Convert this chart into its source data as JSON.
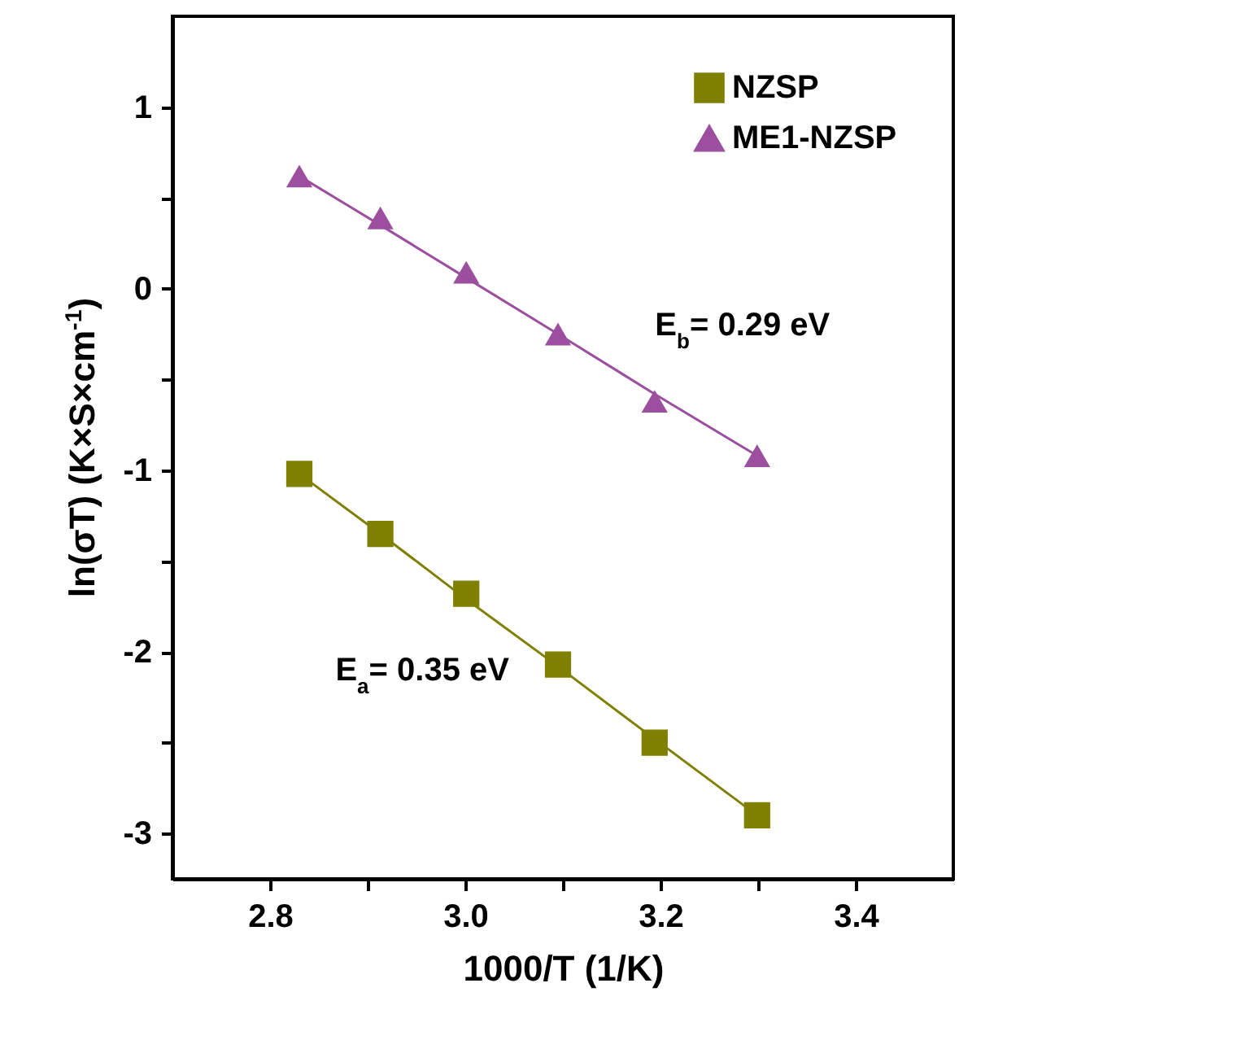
{
  "chart_data": {
    "type": "scatter",
    "xlabel": "1000/T (1/K)",
    "ylabel": "ln(σT) (K×S×cm$^{-1}$)",
    "xlim": [
      2.7,
      3.5
    ],
    "ylim": [
      -3.25,
      1.5
    ],
    "xticks": [
      {
        "value": 2.8,
        "label": "2.8"
      },
      {
        "value": 2.9,
        "label": null
      },
      {
        "value": 3.0,
        "label": "3.0"
      },
      {
        "value": 3.1,
        "label": null
      },
      {
        "value": 3.2,
        "label": "3.2"
      },
      {
        "value": 3.3,
        "label": null
      },
      {
        "value": 3.4,
        "label": "3.4"
      }
    ],
    "yticks": [
      {
        "value": -3,
        "label": "-3"
      },
      {
        "value": -2.5,
        "label": null
      },
      {
        "value": -2,
        "label": "-2"
      },
      {
        "value": -1.5,
        "label": null
      },
      {
        "value": -1,
        "label": "-1"
      },
      {
        "value": -0.5,
        "label": null
      },
      {
        "value": 0,
        "label": "0"
      },
      {
        "value": 0.5,
        "label": null
      },
      {
        "value": 1,
        "label": "1"
      }
    ],
    "grid": false,
    "legend": "top right",
    "x": [
      2.83,
      2.913,
      3.001,
      3.095,
      3.194,
      3.299
    ],
    "series": [
      {
        "name": "NZSP",
        "marker": "square",
        "color": "#808000",
        "values": [
          -1.02,
          -1.35,
          -1.68,
          -2.07,
          -2.5,
          -2.9
        ]
      },
      {
        "name": "ME1-NZSP",
        "marker": "triangle",
        "color": "#9b4f9e",
        "values": [
          0.62,
          0.39,
          0.09,
          -0.25,
          -0.62,
          -0.92
        ]
      },
      {
        "type": "line",
        "color": "#808000",
        "values": [
          -1.02,
          -1.35,
          -1.71,
          -2.08,
          -2.48,
          -2.9
        ]
      },
      {
        "type": "line",
        "color": "#9b4f9e",
        "values": [
          0.62,
          0.35,
          0.06,
          -0.25,
          -0.58,
          -0.92
        ]
      }
    ],
    "annotations": [
      "E$_{a}$= 0.35 eV",
      "E$_{b}$= 0.29 eV"
    ]
  }
}
